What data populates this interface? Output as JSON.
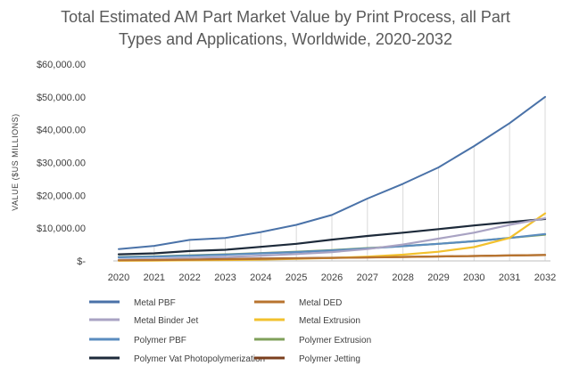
{
  "chart_data": {
    "type": "line",
    "title_lines": [
      "Total Estimated AM Part Market Value by Print Process, all Part",
      "Types and Applications, Worldwide, 2020-2032"
    ],
    "xlabel": "",
    "ylabel": "VALUE ($US MILLIONS)",
    "ylim": [
      0,
      60000
    ],
    "y_ticks": [
      {
        "value": 0,
        "label": "$-"
      },
      {
        "value": 10000,
        "label": "$10,000.00"
      },
      {
        "value": 20000,
        "label": "$20,000.00"
      },
      {
        "value": 30000,
        "label": "$30,000.00"
      },
      {
        "value": 40000,
        "label": "$40,000.00"
      },
      {
        "value": 50000,
        "label": "$50,000.00"
      },
      {
        "value": 60000,
        "label": "$60,000.00"
      }
    ],
    "x": [
      "2020",
      "2021",
      "2022",
      "2023",
      "2024",
      "2025",
      "2026",
      "2027",
      "2028",
      "2029",
      "2030",
      "2031",
      "2032"
    ],
    "vertical_gridlines_on_peaks": true,
    "legend_position": "bottom",
    "series": [
      {
        "name": "Metal PBF",
        "color": "#4a72a8",
        "values": [
          3600,
          4600,
          6400,
          7000,
          8800,
          11000,
          14000,
          19000,
          23500,
          28500,
          35000,
          42000,
          50000
        ]
      },
      {
        "name": "Metal DED",
        "color": "#b8742f",
        "values": [
          200,
          280,
          380,
          480,
          600,
          750,
          900,
          1050,
          1200,
          1350,
          1500,
          1650,
          1800
        ]
      },
      {
        "name": "Metal Binder Jet",
        "color": "#a9a3c3",
        "values": [
          400,
          600,
          900,
          1200,
          1600,
          2100,
          2700,
          3600,
          5000,
          6800,
          8600,
          11000,
          13000
        ]
      },
      {
        "name": "Metal Extrusion",
        "color": "#f2c12e",
        "values": [
          50,
          100,
          180,
          280,
          420,
          620,
          900,
          1300,
          1900,
          2800,
          4200,
          7000,
          14500
        ]
      },
      {
        "name": "Polymer PBF",
        "color": "#5a8cbf",
        "values": [
          1100,
          1300,
          1600,
          1900,
          2300,
          2700,
          3200,
          3800,
          4500,
          5200,
          6000,
          7000,
          8200
        ]
      },
      {
        "name": "Polymer Extrusion",
        "color": "#7fa05a",
        "values": [
          1200,
          1400,
          1700,
          2000,
          2400,
          2800,
          3300,
          3900,
          4500,
          5200,
          6000,
          7000,
          8000
        ]
      },
      {
        "name": "Polymer Vat Photopolymerization",
        "color": "#1d2a3a",
        "values": [
          2000,
          2300,
          3000,
          3400,
          4300,
          5200,
          6500,
          7600,
          8600,
          9700,
          10800,
          11800,
          12800
        ]
      },
      {
        "name": "Polymer Jetting",
        "color": "#7b3f1e",
        "values": [
          300,
          380,
          480,
          580,
          700,
          820,
          950,
          1080,
          1220,
          1360,
          1500,
          1650,
          1800
        ]
      }
    ]
  }
}
